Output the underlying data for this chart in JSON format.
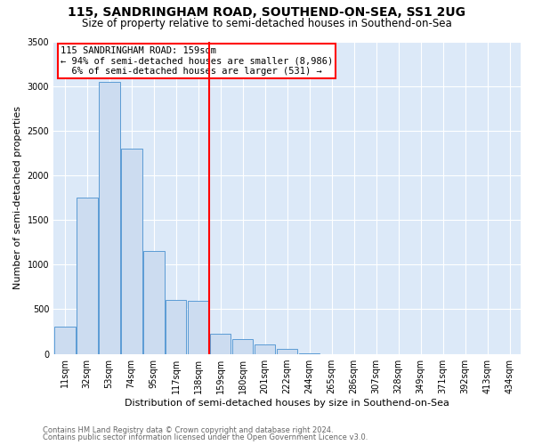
{
  "title": "115, SANDRINGHAM ROAD, SOUTHEND-ON-SEA, SS1 2UG",
  "subtitle": "Size of property relative to semi-detached houses in Southend-on-Sea",
  "xlabel": "Distribution of semi-detached houses by size in Southend-on-Sea",
  "ylabel": "Number of semi-detached properties",
  "footnote1": "Contains HM Land Registry data © Crown copyright and database right 2024.",
  "footnote2": "Contains public sector information licensed under the Open Government Licence v3.0.",
  "bin_labels": [
    "11sqm",
    "32sqm",
    "53sqm",
    "74sqm",
    "95sqm",
    "117sqm",
    "138sqm",
    "159sqm",
    "180sqm",
    "201sqm",
    "222sqm",
    "244sqm",
    "265sqm",
    "286sqm",
    "307sqm",
    "328sqm",
    "349sqm",
    "371sqm",
    "392sqm",
    "413sqm",
    "434sqm"
  ],
  "values": [
    300,
    1750,
    3050,
    2300,
    1150,
    600,
    590,
    230,
    165,
    110,
    55,
    10,
    0,
    0,
    0,
    0,
    0,
    0,
    0,
    0,
    0
  ],
  "bar_color": "#ccdcf0",
  "bar_edge_color": "#5b9bd5",
  "red_line_index": 7,
  "annotation_title": "115 SANDRINGHAM ROAD: 159sqm",
  "annotation_line1": "← 94% of semi-detached houses are smaller (8,986)",
  "annotation_line2": "  6% of semi-detached houses are larger (531) →",
  "ylim": [
    0,
    3500
  ],
  "yticks": [
    0,
    500,
    1000,
    1500,
    2000,
    2500,
    3000,
    3500
  ],
  "bg_color": "#dce9f8",
  "grid_color": "#ffffff",
  "title_fontsize": 10,
  "subtitle_fontsize": 8.5,
  "axis_label_fontsize": 8,
  "tick_fontsize": 7,
  "annotation_fontsize": 7.5,
  "footnote_fontsize": 6,
  "footnote_color": "#666666"
}
